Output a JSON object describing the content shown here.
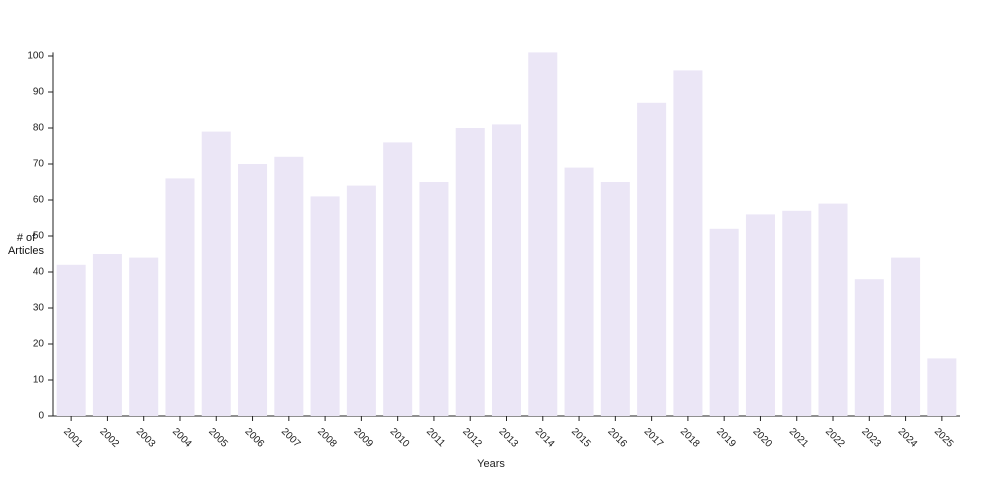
{
  "chart_data": {
    "type": "bar",
    "x_label": "Years",
    "y_label": "# of Articles",
    "categories": [
      "2001",
      "2002",
      "2003",
      "2004",
      "2005",
      "2006",
      "2007",
      "2008",
      "2009",
      "2010",
      "2011",
      "2012",
      "2013",
      "2014",
      "2015",
      "2016",
      "2017",
      "2018",
      "2019",
      "2020",
      "2021",
      "2022",
      "2023",
      "2024",
      "2025"
    ],
    "values": [
      42,
      45,
      44,
      66,
      79,
      70,
      72,
      61,
      64,
      76,
      65,
      80,
      81,
      101,
      69,
      65,
      87,
      96,
      52,
      56,
      57,
      59,
      38,
      44,
      16
    ],
    "color": "#ebe6f6",
    "ylim": [
      0,
      101
    ],
    "yticks": [
      0,
      10,
      20,
      30,
      40,
      50,
      60,
      70,
      80,
      90,
      100
    ],
    "grid": false
  }
}
